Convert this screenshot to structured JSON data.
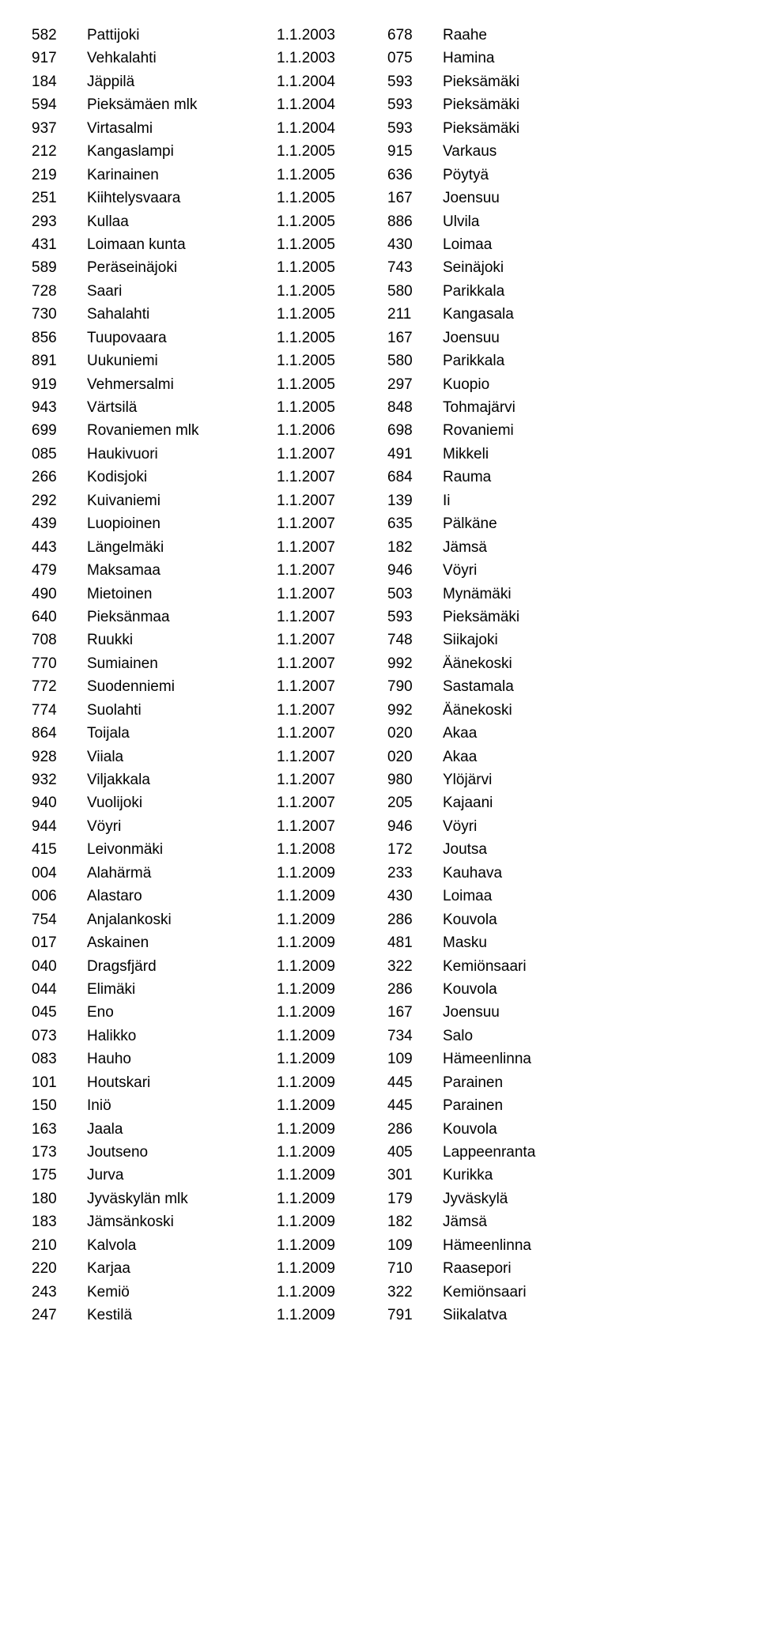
{
  "rows": [
    {
      "c1": "582",
      "c2": "Pattijoki",
      "c3": "1.1.2003",
      "c4": "678",
      "c5": "Raahe"
    },
    {
      "c1": "917",
      "c2": "Vehkalahti",
      "c3": "1.1.2003",
      "c4": "075",
      "c5": "Hamina"
    },
    {
      "c1": "184",
      "c2": "Jäppilä",
      "c3": "1.1.2004",
      "c4": "593",
      "c5": "Pieksämäki"
    },
    {
      "c1": "594",
      "c2": "Pieksämäen mlk",
      "c3": "1.1.2004",
      "c4": "593",
      "c5": "Pieksämäki"
    },
    {
      "c1": "937",
      "c2": "Virtasalmi",
      "c3": "1.1.2004",
      "c4": "593",
      "c5": "Pieksämäki"
    },
    {
      "c1": "212",
      "c2": "Kangaslampi",
      "c3": "1.1.2005",
      "c4": "915",
      "c5": "Varkaus"
    },
    {
      "c1": "219",
      "c2": "Karinainen",
      "c3": "1.1.2005",
      "c4": "636",
      "c5": "Pöytyä"
    },
    {
      "c1": "251",
      "c2": "Kiihtelysvaara",
      "c3": "1.1.2005",
      "c4": "167",
      "c5": "Joensuu"
    },
    {
      "c1": "293",
      "c2": "Kullaa",
      "c3": "1.1.2005",
      "c4": "886",
      "c5": "Ulvila"
    },
    {
      "c1": "431",
      "c2": "Loimaan kunta",
      "c3": "1.1.2005",
      "c4": "430",
      "c5": "Loimaa"
    },
    {
      "c1": "589",
      "c2": "Peräseinäjoki",
      "c3": "1.1.2005",
      "c4": "743",
      "c5": "Seinäjoki"
    },
    {
      "c1": "728",
      "c2": "Saari",
      "c3": "1.1.2005",
      "c4": "580",
      "c5": "Parikkala"
    },
    {
      "c1": "730",
      "c2": "Sahalahti",
      "c3": "1.1.2005",
      "c4": "211",
      "c5": "Kangasala"
    },
    {
      "c1": "856",
      "c2": "Tuupovaara",
      "c3": "1.1.2005",
      "c4": "167",
      "c5": "Joensuu"
    },
    {
      "c1": "891",
      "c2": "Uukuniemi",
      "c3": "1.1.2005",
      "c4": "580",
      "c5": "Parikkala"
    },
    {
      "c1": "919",
      "c2": "Vehmersalmi",
      "c3": "1.1.2005",
      "c4": "297",
      "c5": "Kuopio"
    },
    {
      "c1": "943",
      "c2": "Värtsilä",
      "c3": "1.1.2005",
      "c4": "848",
      "c5": "Tohmajärvi"
    },
    {
      "c1": "699",
      "c2": "Rovaniemen mlk",
      "c3": "1.1.2006",
      "c4": "698",
      "c5": "Rovaniemi"
    },
    {
      "c1": "085",
      "c2": "Haukivuori",
      "c3": "1.1.2007",
      "c4": "491",
      "c5": "Mikkeli"
    },
    {
      "c1": "266",
      "c2": "Kodisjoki",
      "c3": "1.1.2007",
      "c4": "684",
      "c5": "Rauma"
    },
    {
      "c1": "292",
      "c2": "Kuivaniemi",
      "c3": "1.1.2007",
      "c4": "139",
      "c5": "Ii"
    },
    {
      "c1": "439",
      "c2": "Luopioinen",
      "c3": "1.1.2007",
      "c4": "635",
      "c5": "Pälkäne"
    },
    {
      "c1": "443",
      "c2": "Längelmäki",
      "c3": "1.1.2007",
      "c4": "182",
      "c5": "Jämsä"
    },
    {
      "c1": "479",
      "c2": "Maksamaa",
      "c3": "1.1.2007",
      "c4": "946",
      "c5": "Vöyri"
    },
    {
      "c1": "490",
      "c2": "Mietoinen",
      "c3": "1.1.2007",
      "c4": "503",
      "c5": "Mynämäki"
    },
    {
      "c1": "640",
      "c2": "Pieksänmaa",
      "c3": "1.1.2007",
      "c4": "593",
      "c5": "Pieksämäki"
    },
    {
      "c1": "708",
      "c2": "Ruukki",
      "c3": "1.1.2007",
      "c4": "748",
      "c5": "Siikajoki"
    },
    {
      "c1": "770",
      "c2": "Sumiainen",
      "c3": "1.1.2007",
      "c4": "992",
      "c5": "Äänekoski"
    },
    {
      "c1": "772",
      "c2": "Suodenniemi",
      "c3": "1.1.2007",
      "c4": "790",
      "c5": "Sastamala"
    },
    {
      "c1": "774",
      "c2": "Suolahti",
      "c3": "1.1.2007",
      "c4": "992",
      "c5": "Äänekoski"
    },
    {
      "c1": "864",
      "c2": "Toijala",
      "c3": "1.1.2007",
      "c4": "020",
      "c5": "Akaa"
    },
    {
      "c1": "928",
      "c2": "Viiala",
      "c3": "1.1.2007",
      "c4": "020",
      "c5": "Akaa"
    },
    {
      "c1": "932",
      "c2": "Viljakkala",
      "c3": "1.1.2007",
      "c4": "980",
      "c5": "Ylöjärvi"
    },
    {
      "c1": "940",
      "c2": "Vuolijoki",
      "c3": "1.1.2007",
      "c4": "205",
      "c5": "Kajaani"
    },
    {
      "c1": "944",
      "c2": "Vöyri",
      "c3": "1.1.2007",
      "c4": "946",
      "c5": "Vöyri"
    },
    {
      "c1": "415",
      "c2": "Leivonmäki",
      "c3": "1.1.2008",
      "c4": "172",
      "c5": "Joutsa"
    },
    {
      "c1": "004",
      "c2": "Alahärmä",
      "c3": "1.1.2009",
      "c4": "233",
      "c5": "Kauhava"
    },
    {
      "c1": "006",
      "c2": "Alastaro",
      "c3": "1.1.2009",
      "c4": "430",
      "c5": "Loimaa"
    },
    {
      "c1": "754",
      "c2": "Anjalankoski",
      "c3": "1.1.2009",
      "c4": "286",
      "c5": "Kouvola"
    },
    {
      "c1": "017",
      "c2": "Askainen",
      "c3": "1.1.2009",
      "c4": "481",
      "c5": "Masku"
    },
    {
      "c1": "040",
      "c2": "Dragsfjärd",
      "c3": "1.1.2009",
      "c4": "322",
      "c5": "Kemiönsaari"
    },
    {
      "c1": "044",
      "c2": "Elimäki",
      "c3": "1.1.2009",
      "c4": "286",
      "c5": "Kouvola"
    },
    {
      "c1": "045",
      "c2": "Eno",
      "c3": "1.1.2009",
      "c4": "167",
      "c5": "Joensuu"
    },
    {
      "c1": "073",
      "c2": "Halikko",
      "c3": "1.1.2009",
      "c4": "734",
      "c5": "Salo"
    },
    {
      "c1": "083",
      "c2": "Hauho",
      "c3": "1.1.2009",
      "c4": "109",
      "c5": "Hämeenlinna"
    },
    {
      "c1": "101",
      "c2": "Houtskari",
      "c3": "1.1.2009",
      "c4": "445",
      "c5": "Parainen"
    },
    {
      "c1": "150",
      "c2": "Iniö",
      "c3": "1.1.2009",
      "c4": "445",
      "c5": "Parainen"
    },
    {
      "c1": "163",
      "c2": "Jaala",
      "c3": "1.1.2009",
      "c4": "286",
      "c5": "Kouvola"
    },
    {
      "c1": "173",
      "c2": "Joutseno",
      "c3": "1.1.2009",
      "c4": "405",
      "c5": "Lappeenranta"
    },
    {
      "c1": "175",
      "c2": "Jurva",
      "c3": "1.1.2009",
      "c4": "301",
      "c5": "Kurikka"
    },
    {
      "c1": "180",
      "c2": "Jyväskylän mlk",
      "c3": "1.1.2009",
      "c4": "179",
      "c5": "Jyväskylä"
    },
    {
      "c1": "183",
      "c2": "Jämsänkoski",
      "c3": "1.1.2009",
      "c4": "182",
      "c5": "Jämsä"
    },
    {
      "c1": "210",
      "c2": "Kalvola",
      "c3": "1.1.2009",
      "c4": "109",
      "c5": "Hämeenlinna"
    },
    {
      "c1": "220",
      "c2": "Karjaa",
      "c3": "1.1.2009",
      "c4": "710",
      "c5": "Raasepori"
    },
    {
      "c1": "243",
      "c2": "Kemiö",
      "c3": "1.1.2009",
      "c4": "322",
      "c5": "Kemiönsaari"
    },
    {
      "c1": "247",
      "c2": "Kestilä",
      "c3": "1.1.2009",
      "c4": "791",
      "c5": "Siikalatva"
    }
  ]
}
